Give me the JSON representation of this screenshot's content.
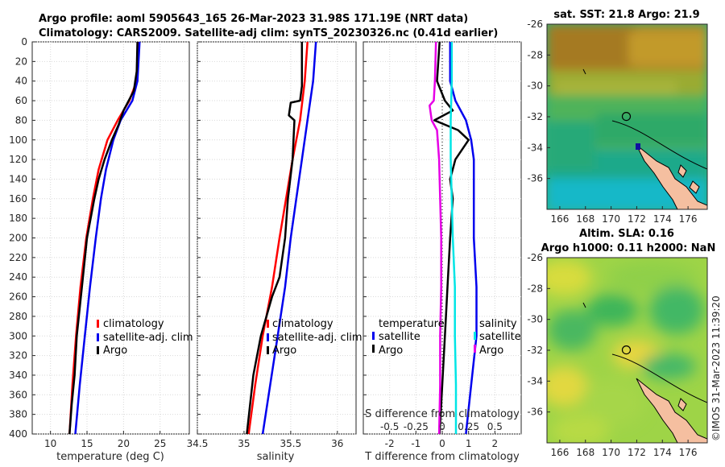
{
  "header": {
    "title_line1": "Argo profile: aoml 5905643_165 26-Mar-2023 31.98S 171.19E (NRT data)",
    "title_line2": "Climatology: CARS2009. Satellite-adj clim: synTS_20230326.nc (0.41d earlier)"
  },
  "credit": "©IMOS 31-Mar-2023 11:39:20",
  "colors": {
    "climatology": "#ff0000",
    "satellite": "#0000ee",
    "argo": "#000000",
    "sal_satellite": "#00e5e5",
    "sal_argo": "#e600e6",
    "land": "#f5bfa0"
  },
  "chart_data": [
    {
      "type": "line",
      "title": "",
      "xlabel": "temperature (deg C)",
      "ylabel": "",
      "xlim": [
        7.5,
        29
      ],
      "ylim": [
        400,
        0
      ],
      "xticks": [
        10,
        15,
        20,
        25
      ],
      "yticks": [
        0,
        20,
        40,
        60,
        80,
        100,
        120,
        140,
        160,
        180,
        200,
        220,
        240,
        260,
        280,
        300,
        320,
        340,
        360,
        380,
        400
      ],
      "legend": [
        "climatology",
        "satellite-adj. clim",
        "Argo"
      ],
      "series": [
        {
          "name": "climatology",
          "color": "red",
          "depth": [
            0,
            40,
            60,
            80,
            100,
            130,
            160,
            200,
            250,
            300,
            350,
            400
          ],
          "values": [
            22.0,
            21.8,
            20.8,
            19.2,
            17.8,
            16.6,
            15.8,
            14.9,
            14.1,
            13.5,
            13.0,
            12.6
          ]
        },
        {
          "name": "satellite-adj. clim",
          "color": "blue",
          "depth": [
            0,
            40,
            60,
            80,
            100,
            130,
            160,
            200,
            250,
            300,
            350,
            400
          ],
          "values": [
            22.2,
            21.9,
            21.2,
            19.6,
            18.6,
            17.6,
            16.9,
            16.2,
            15.4,
            14.7,
            14.0,
            13.4
          ]
        },
        {
          "name": "Argo",
          "color": "black",
          "depth": [
            0,
            30,
            50,
            70,
            85,
            100,
            120,
            140,
            160,
            200,
            250,
            300,
            340,
            370,
            400
          ],
          "values": [
            21.9,
            21.8,
            21.4,
            20.0,
            19.3,
            18.4,
            17.4,
            16.6,
            16.0,
            15.0,
            14.3,
            13.6,
            13.3,
            12.9,
            12.6
          ]
        }
      ]
    },
    {
      "type": "line",
      "title": "",
      "xlabel": "salinity",
      "ylabel": "",
      "xlim": [
        34.5,
        36.2
      ],
      "ylim": [
        400,
        0
      ],
      "xticks": [
        34.5,
        35,
        35.5,
        36
      ],
      "yticks": [],
      "legend": [
        "climatology",
        "satellite-adj. clim",
        "Argo"
      ],
      "series": [
        {
          "name": "climatology",
          "color": "red",
          "depth": [
            0,
            40,
            80,
            120,
            160,
            200,
            250,
            300,
            350,
            400
          ],
          "values": [
            35.68,
            35.65,
            35.6,
            35.52,
            35.45,
            35.38,
            35.3,
            35.2,
            35.12,
            35.05
          ]
        },
        {
          "name": "satellite-adj. clim",
          "color": "blue",
          "depth": [
            0,
            40,
            80,
            120,
            160,
            200,
            250,
            300,
            350,
            400
          ],
          "values": [
            35.77,
            35.74,
            35.68,
            35.62,
            35.56,
            35.5,
            35.44,
            35.36,
            35.28,
            35.2
          ]
        },
        {
          "name": "Argo",
          "color": "black",
          "depth": [
            0,
            45,
            60,
            62,
            75,
            80,
            120,
            160,
            200,
            240,
            260,
            300,
            340,
            400
          ],
          "values": [
            35.62,
            35.62,
            35.6,
            35.5,
            35.48,
            35.54,
            35.52,
            35.47,
            35.44,
            35.38,
            35.3,
            35.18,
            35.1,
            35.03
          ]
        }
      ]
    },
    {
      "type": "line",
      "title": "",
      "xlabel": "T difference from climatology",
      "ylabel": "",
      "xlim": [
        -3,
        3
      ],
      "ylim": [
        400,
        0
      ],
      "xticks": [
        -2,
        -1,
        0,
        1,
        2
      ],
      "yticks": [],
      "secondary_xlabel": "S difference from climatology",
      "secondary_xticks": [
        "-0.5",
        "-0.25",
        "0",
        "0.25",
        "0.5"
      ],
      "legend_temperature": [
        "temperature",
        "satellite",
        "Argo"
      ],
      "legend_salinity": [
        "salinity",
        "satellite",
        "Argo"
      ],
      "series": [
        {
          "name": "temperature satellite",
          "color": "blue",
          "depth": [
            0,
            40,
            60,
            80,
            100,
            120,
            160,
            200,
            250,
            300,
            350,
            400
          ],
          "values": [
            0.3,
            0.3,
            0.5,
            0.9,
            1.1,
            1.2,
            1.2,
            1.2,
            1.3,
            1.3,
            1.1,
            0.9
          ]
        },
        {
          "name": "temperature Argo",
          "color": "black",
          "depth": [
            0,
            40,
            60,
            70,
            80,
            90,
            100,
            120,
            140,
            160,
            200,
            250,
            300,
            350,
            400
          ],
          "values": [
            -0.1,
            -0.2,
            0.1,
            0.4,
            -0.3,
            0.6,
            1.0,
            0.5,
            0.3,
            0.4,
            0.3,
            0.2,
            0.1,
            0.0,
            -0.1
          ]
        },
        {
          "name": "salinity satellite",
          "color": "cyan",
          "depth": [
            0,
            40,
            80,
            120,
            160,
            200,
            250,
            300,
            350,
            400
          ],
          "values": [
            0.09,
            0.09,
            0.08,
            0.08,
            0.09,
            0.1,
            0.12,
            0.12,
            0.13,
            0.13
          ]
        },
        {
          "name": "salinity Argo",
          "color": "magenta",
          "depth": [
            0,
            40,
            60,
            65,
            80,
            90,
            120,
            160,
            200,
            250,
            300,
            350,
            400
          ],
          "values": [
            -0.06,
            -0.07,
            -0.08,
            -0.12,
            -0.1,
            -0.05,
            -0.03,
            -0.02,
            -0.01,
            -0.01,
            -0.02,
            -0.02,
            -0.03
          ]
        }
      ]
    },
    {
      "type": "heatmap",
      "title": "sat. SST: 21.8 Argo: 21.9",
      "xlim": [
        165,
        177.5
      ],
      "ylim": [
        -38,
        -26
      ],
      "xticks": [
        166,
        168,
        170,
        172,
        174,
        176
      ],
      "yticks": [
        -26,
        -28,
        -30,
        -32,
        -34,
        -36
      ],
      "profile_location": {
        "lon": 171.19,
        "lat": -31.98
      }
    },
    {
      "type": "heatmap",
      "title": "Altim. SLA: 0.16",
      "subtitle": "Argo h1000: 0.11 h2000: NaN",
      "xlim": [
        165,
        177.5
      ],
      "ylim": [
        -38,
        -26
      ],
      "xticks": [
        166,
        168,
        170,
        172,
        174,
        176
      ],
      "yticks": [
        -26,
        -28,
        -30,
        -32,
        -34,
        -36
      ],
      "profile_location": {
        "lon": 171.19,
        "lat": -31.98
      }
    }
  ]
}
